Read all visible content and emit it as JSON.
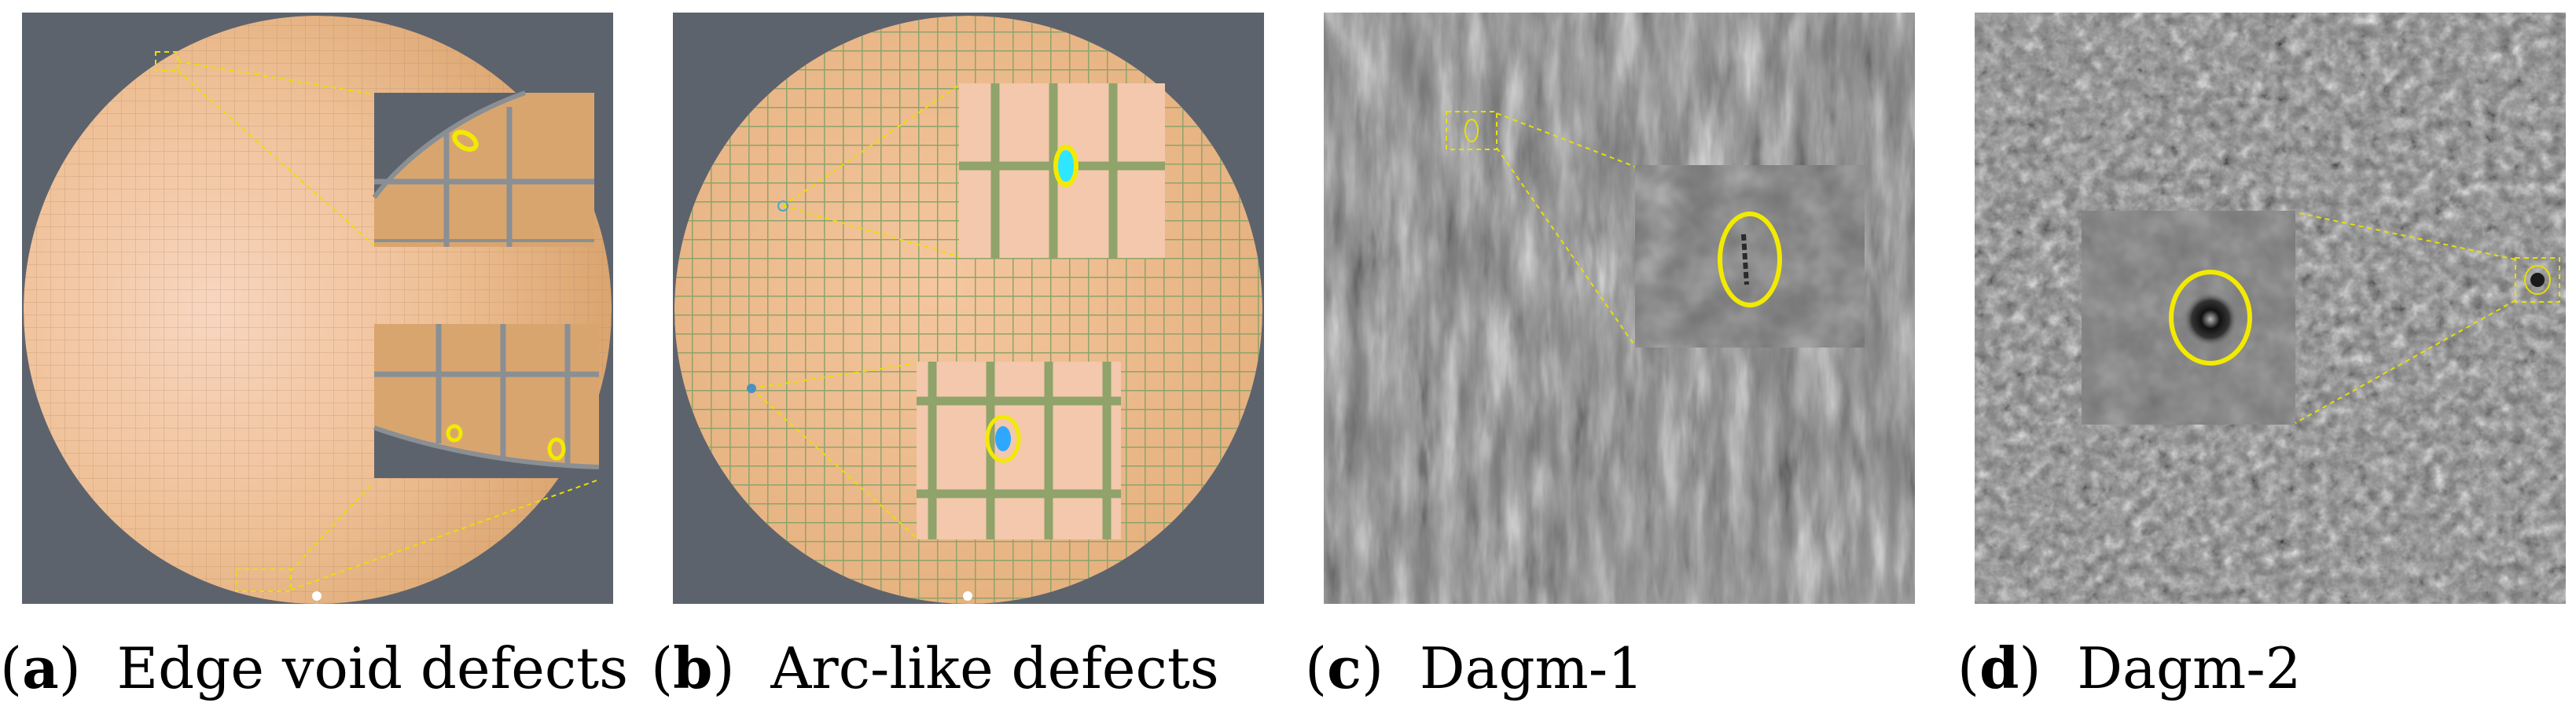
{
  "panels": [
    {
      "id": "a",
      "paren_open": "(",
      "letter": "a",
      "paren_close": ")",
      "caption": "Edge void defects"
    },
    {
      "id": "b",
      "paren_open": "(",
      "letter": "b",
      "paren_close": ")",
      "caption": "Arc-like defects"
    },
    {
      "id": "c",
      "paren_open": "(",
      "letter": "c",
      "paren_close": ")",
      "caption": "Dagm-1"
    },
    {
      "id": "d",
      "paren_open": "(",
      "letter": "d",
      "paren_close": ")",
      "caption": "Dagm-2"
    }
  ],
  "colors": {
    "background_slate": "#5d636d",
    "wafer_center": "#f7d3bc",
    "wafer_edge": "#dca672",
    "grid_gray": "#8a8f93",
    "grid_green": "#8fa36b",
    "highlight_yellow": "#f2ea00",
    "defect_cyan": "#2ee6ff"
  }
}
